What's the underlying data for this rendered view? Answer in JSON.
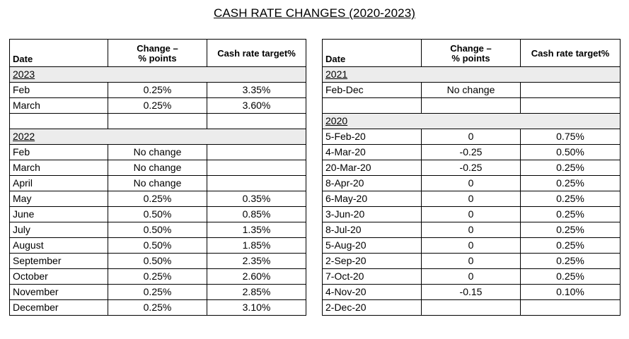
{
  "title": "CASH RATE CHANGES (2020-2023)",
  "headers": {
    "date": "Date",
    "change_line1": "Change –",
    "change_line2": "% points",
    "rate": "Cash rate target%"
  },
  "left": {
    "y2023": {
      "label": "2023",
      "rows": [
        {
          "date": "Feb",
          "change": "0.25%",
          "rate": "3.35%"
        },
        {
          "date": "March",
          "change": "0.25%",
          "rate": "3.60%"
        }
      ]
    },
    "y2022": {
      "label": "2022",
      "rows": [
        {
          "date": "Feb",
          "change": "No change",
          "rate": ""
        },
        {
          "date": "March",
          "change": "No change",
          "rate": ""
        },
        {
          "date": "April",
          "change": "No change",
          "rate": ""
        },
        {
          "date": "May",
          "change": "0.25%",
          "rate": "0.35%"
        },
        {
          "date": "June",
          "change": "0.50%",
          "rate": "0.85%"
        },
        {
          "date": "July",
          "change": "0.50%",
          "rate": "1.35%"
        },
        {
          "date": "August",
          "change": "0.50%",
          "rate": "1.85%"
        },
        {
          "date": "September",
          "change": "0.50%",
          "rate": "2.35%"
        },
        {
          "date": "October",
          "change": "0.25%",
          "rate": "2.60%"
        },
        {
          "date": "November",
          "change": "0.25%",
          "rate": "2.85%"
        },
        {
          "date": "December",
          "change": "0.25%",
          "rate": "3.10%"
        }
      ]
    }
  },
  "right": {
    "y2021": {
      "label": "2021",
      "rows": [
        {
          "date": "Feb-Dec",
          "change": "No change",
          "rate": ""
        }
      ]
    },
    "y2020": {
      "label": "2020",
      "rows": [
        {
          "date": "5-Feb-20",
          "change": "0",
          "rate": "0.75%"
        },
        {
          "date": "4-Mar-20",
          "change": "-0.25",
          "rate": "0.50%"
        },
        {
          "date": "20-Mar-20",
          "change": "-0.25",
          "rate": "0.25%"
        },
        {
          "date": "8-Apr-20",
          "change": "0",
          "rate": "0.25%"
        },
        {
          "date": "6-May-20",
          "change": "0",
          "rate": "0.25%"
        },
        {
          "date": "3-Jun-20",
          "change": "0",
          "rate": "0.25%"
        },
        {
          "date": "8-Jul-20",
          "change": "0",
          "rate": "0.25%"
        },
        {
          "date": "5-Aug-20",
          "change": "0",
          "rate": "0.25%"
        },
        {
          "date": "2-Sep-20",
          "change": "0",
          "rate": "0.25%"
        },
        {
          "date": "7-Oct-20",
          "change": "0",
          "rate": "0.25%"
        },
        {
          "date": "4-Nov-20",
          "change": "-0.15",
          "rate": "0.10%"
        },
        {
          "date": "2-Dec-20",
          "change": "",
          "rate": ""
        }
      ]
    }
  }
}
